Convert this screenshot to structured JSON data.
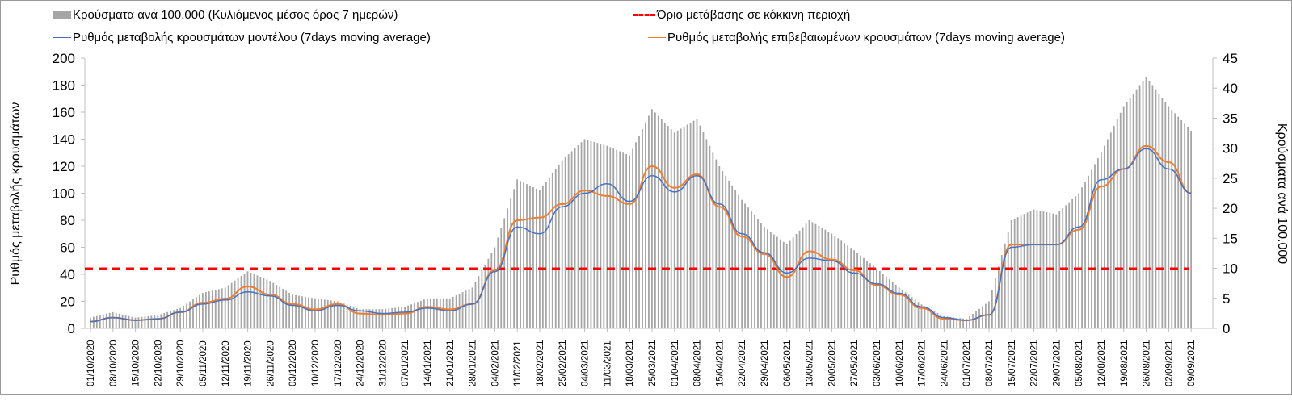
{
  "chart_data": {
    "type": "bar+line",
    "legend": {
      "bars": "Κρούσματα ανά 100.000 (Κυλιόμενος μέσος όρος 7 ημερών)",
      "threshold": "Όριο μετάβασης σε κόκκινη περιοχή",
      "model": "Ρυθμός μεταβολής κρουσμάτων μοντέλου (7days moving average)",
      "confirmed": "Ρυθμός μεταβολής επιβεβαιωμένων κρουσμάτων (7days moving average)"
    },
    "ylabel": "Ρυθμός μεταβολής κρουσμάτων",
    "y2label": "Κρούσματα ανά 100.000",
    "ylim": [
      0,
      200
    ],
    "y2lim": [
      0,
      45
    ],
    "yticks": [
      0,
      20,
      40,
      60,
      80,
      100,
      120,
      140,
      160,
      180,
      200
    ],
    "y2ticks": [
      0,
      5,
      10,
      15,
      20,
      25,
      30,
      35,
      40,
      45
    ],
    "x": [
      "01/10/2020",
      "08/10/2020",
      "15/10/2020",
      "22/10/2020",
      "29/10/2020",
      "05/11/2020",
      "12/11/2020",
      "19/11/2020",
      "26/11/2020",
      "03/12/2020",
      "10/12/2020",
      "17/12/2020",
      "24/12/2020",
      "31/12/2020",
      "07/01/2021",
      "14/01/2021",
      "21/01/2021",
      "28/01/2021",
      "04/02/2021",
      "11/02/2021",
      "18/02/2021",
      "25/02/2021",
      "04/03/2021",
      "11/03/2021",
      "18/03/2021",
      "25/03/2021",
      "01/04/2021",
      "08/04/2021",
      "15/04/2021",
      "22/04/2021",
      "29/04/2021",
      "06/05/2021",
      "13/05/2021",
      "20/05/2021",
      "27/05/2021",
      "03/06/2021",
      "10/06/2021",
      "17/06/2021",
      "24/06/2021",
      "01/07/2021",
      "08/07/2021",
      "15/07/2021",
      "22/07/2021",
      "29/07/2021",
      "05/08/2021",
      "12/08/2021",
      "19/08/2021",
      "26/08/2021",
      "02/09/2021",
      "09/09/2021"
    ],
    "cases_per_100k": [
      1.8,
      2.7,
      1.8,
      2.2,
      3.4,
      5.9,
      6.8,
      9.5,
      7.9,
      5.6,
      5,
      4.5,
      3.2,
      3.2,
      3.6,
      5,
      5,
      6.8,
      13.5,
      24.8,
      23,
      28,
      31.5,
      30.4,
      28.8,
      36.5,
      32.6,
      34.9,
      27,
      21.4,
      16.9,
      14,
      18,
      15.8,
      13,
      10,
      6.8,
      4,
      2,
      1.6,
      4.5,
      18,
      19.8,
      19,
      22.5,
      29.3,
      37,
      41.9,
      37,
      32.9
    ],
    "model_rate": [
      5,
      8,
      6,
      7,
      12,
      18,
      21,
      27,
      24,
      17,
      13,
      17,
      13,
      11,
      12,
      15,
      13,
      18,
      42,
      75,
      70,
      90,
      100,
      107,
      94,
      113,
      101,
      113,
      92,
      70,
      56,
      41,
      52,
      50,
      41,
      33,
      26,
      16,
      8,
      6,
      10,
      60,
      62,
      62,
      75,
      110,
      118,
      133,
      118,
      100
    ],
    "confirmed_rate": [
      5,
      8,
      6,
      7,
      12,
      19,
      22,
      31,
      25,
      18,
      14,
      18,
      11,
      10,
      11,
      16,
      14,
      18,
      43,
      80,
      82,
      92,
      102,
      98,
      92,
      120,
      104,
      114,
      90,
      68,
      55,
      38,
      57,
      51,
      43,
      32,
      25,
      15,
      7,
      6,
      10,
      62,
      62,
      62,
      73,
      105,
      118,
      135,
      123,
      100
    ],
    "threshold": 44,
    "colors": {
      "bars": "#a6a6a6",
      "model": "#4472c4",
      "confirmed": "#ed7d31",
      "threshold": "#ff0000"
    }
  }
}
